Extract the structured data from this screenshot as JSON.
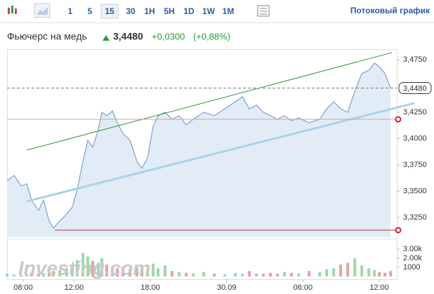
{
  "toolbar": {
    "intervals": [
      "1",
      "5",
      "15",
      "30",
      "1H",
      "5H",
      "1D",
      "1W",
      "1M"
    ],
    "selected": "15",
    "stream": "Потоковый график"
  },
  "quote": {
    "name": "Фьючерс на медь",
    "price": "3,4480",
    "change": "+0,0300",
    "change_pct": "(+0,88%)"
  },
  "watermark": "Investing.com",
  "chart_data": {
    "type": "area",
    "line_color": "#7ba3cc",
    "fill_color": "#e2ecf6",
    "grid": false,
    "x": [
      6.73,
      7.28,
      7.84,
      8.28,
      8.66,
      9.21,
      9.6,
      10.04,
      10.38,
      10.87,
      11.42,
      11.87,
      12.25,
      12.7,
      13.08,
      13.47,
      13.91,
      14.19,
      14.57,
      15.02,
      15.4,
      15.85,
      16.4,
      16.95,
      17.34,
      17.78,
      18.22,
      18.61,
      19.16,
      19.71,
      20.27,
      20.82,
      21.37,
      22.2,
      23.03,
      23.86,
      24.69,
      25.24,
      25.79,
      26.34,
      26.89,
      27.45,
      28.0,
      28.55,
      29.1,
      29.66,
      30.49,
      31.32,
      31.87,
      32.42,
      32.97,
      33.52,
      34.08,
      34.63,
      35.18,
      35.62,
      36.01,
      36.45,
      36.9
    ],
    "values": [
      3.3597,
      3.365,
      3.355,
      3.357,
      3.3417,
      3.3317,
      3.3417,
      3.3217,
      3.315,
      3.3217,
      3.3283,
      3.335,
      3.3517,
      3.3783,
      3.3983,
      3.3917,
      3.4083,
      3.425,
      3.4217,
      3.4263,
      3.415,
      3.405,
      3.3983,
      3.3783,
      3.3717,
      3.3817,
      3.4117,
      3.4217,
      3.425,
      3.4183,
      3.4217,
      3.413,
      3.4183,
      3.425,
      3.4217,
      3.4283,
      3.435,
      3.4397,
      3.4283,
      3.4317,
      3.425,
      3.4217,
      3.4183,
      3.4217,
      3.417,
      3.4197,
      3.415,
      3.4183,
      3.4283,
      3.435,
      3.4283,
      3.425,
      3.445,
      3.4617,
      3.465,
      3.4717,
      3.4683,
      3.4617,
      3.448
    ],
    "last": {
      "value": 3.448,
      "label": "3,4480"
    },
    "xlim": [
      6.73,
      37.38
    ],
    "xticks": [
      {
        "value": 8,
        "label": "08:00"
      },
      {
        "value": 12,
        "label": "12:00"
      },
      {
        "value": 18,
        "label": "18:00"
      },
      {
        "value": 24,
        "label": "30.09"
      },
      {
        "value": 30,
        "label": "06:00"
      },
      {
        "value": 36,
        "label": "12:00"
      }
    ],
    "ylim": [
      3.3063,
      3.485
    ],
    "yticks": [
      {
        "value": 3.475,
        "label": "3,4750"
      },
      {
        "value": 3.425,
        "label": "3,4250"
      },
      {
        "value": 3.4,
        "label": "3,4000"
      },
      {
        "value": 3.375,
        "label": "3,3750"
      },
      {
        "value": 3.35,
        "label": "3,3500"
      },
      {
        "value": 3.325,
        "label": "3,3250"
      }
    ],
    "drawings": [
      {
        "color": "#2e9a3a",
        "x": [
          8.28,
          37.0
        ],
        "y": [
          3.389,
          3.4817
        ]
      },
      {
        "color": "#a6d4ea",
        "x": [
          8.28,
          38.77
        ],
        "y": [
          3.3403,
          3.4337
        ]
      },
      {
        "color": "#e89a9a",
        "x": [
          6.73,
          37.38
        ],
        "y": [
          3.4183,
          3.4183
        ]
      },
      {
        "color": "#b0303a",
        "x": [
          10.5,
          37.38
        ],
        "y": [
          3.313,
          3.313
        ]
      }
    ],
    "volume": {
      "ylim": [
        0,
        3770
      ],
      "yticks": [
        1000,
        {
          "value": 2000,
          "label": "2.00k"
        },
        {
          "value": 3000,
          "label": "3.00k"
        }
      ],
      "values": [
        300,
        200,
        150,
        250,
        400,
        300,
        350,
        500,
        600,
        700,
        900,
        1200,
        1800,
        2600,
        2200,
        1700,
        1500,
        2000,
        1300,
        1100,
        900,
        1000,
        800,
        900,
        1100,
        700,
        1400,
        900,
        1200,
        600,
        500,
        400,
        350,
        500,
        300,
        250,
        400,
        300,
        600,
        350,
        300,
        400,
        300,
        500,
        400,
        350,
        600,
        500,
        800,
        900,
        1300,
        1500,
        2000,
        1200,
        900,
        700,
        500,
        400,
        600
      ],
      "colors": [
        "#9fd8a8",
        "#9fd8a8",
        "#e3a3a3",
        "#9fd8a8",
        "#e3a3a3",
        "#e3a3a3",
        "#9fd8a8",
        "#e3a3a3",
        "#e3a3a3",
        "#9fd8a8",
        "#9fd8a8",
        "#9fd8a8",
        "#9fd8a8",
        "#9fd8a8",
        "#9fd8a8",
        "#e3a3a3",
        "#9fd8a8",
        "#9fd8a8",
        "#e3a3a3",
        "#9fd8a8",
        "#e3a3a3",
        "#e3a3a3",
        "#e3a3a3",
        "#e3a3a3",
        "#e3a3a3",
        "#9fd8a8",
        "#9fd8a8",
        "#9fd8a8",
        "#9fd8a8",
        "#e3a3a3",
        "#9fd8a8",
        "#e3a3a3",
        "#9fd8a8",
        "#9fd8a8",
        "#e3a3a3",
        "#9fd8a8",
        "#9fd8a8",
        "#9fd8a8",
        "#e3a3a3",
        "#9fd8a8",
        "#e3a3a3",
        "#e3a3a3",
        "#e3a3a3",
        "#9fd8a8",
        "#e3a3a3",
        "#9fd8a8",
        "#e3a3a3",
        "#9fd8a8",
        "#9fd8a8",
        "#9fd8a8",
        "#e3a3a3",
        "#e3a3a3",
        "#9fd8a8",
        "#9fd8a8",
        "#9fd8a8",
        "#9fd8a8",
        "#e3a3a3",
        "#e3a3a3",
        "#e3a3a3"
      ]
    }
  }
}
